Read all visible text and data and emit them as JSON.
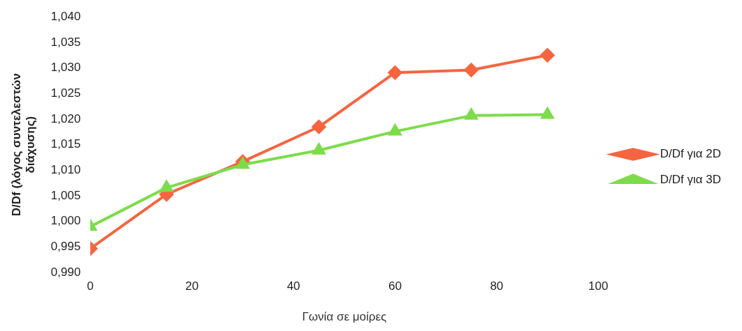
{
  "chart_data": {
    "type": "line",
    "xlabel": "Γωνία σε μοίρες",
    "ylabel": "D/Df (λόγος συντελεστών\nδιάχυσης)",
    "x": [
      0,
      15,
      30,
      45,
      60,
      75,
      90
    ],
    "series": [
      {
        "name": "D/Df για 2D",
        "color": "#f5653f",
        "marker": "diamond",
        "values": [
          0.9947,
          1.0053,
          1.0117,
          1.0185,
          1.0291,
          1.0296,
          1.0325
        ]
      },
      {
        "name": "D/Df για 3D",
        "color": "#7cdc4a",
        "marker": "triangle",
        "values": [
          0.999,
          1.0066,
          1.0111,
          1.0139,
          1.0176,
          1.0207,
          1.0209
        ]
      }
    ],
    "xlim": [
      0,
      100
    ],
    "xticks": [
      0,
      20,
      40,
      60,
      80,
      100
    ],
    "ylim": [
      0.99,
      1.04
    ],
    "yticks": [
      {
        "value": 0.99,
        "label": "0,990"
      },
      {
        "value": 0.995,
        "label": "0,995"
      },
      {
        "value": 1.0,
        "label": "1,000"
      },
      {
        "value": 1.005,
        "label": "1,005"
      },
      {
        "value": 1.01,
        "label": "1,010"
      },
      {
        "value": 1.015,
        "label": "1,015"
      },
      {
        "value": 1.02,
        "label": "1,020"
      },
      {
        "value": 1.025,
        "label": "1,025"
      },
      {
        "value": 1.03,
        "label": "1,030"
      },
      {
        "value": 1.035,
        "label": "1,035"
      },
      {
        "value": 1.04,
        "label": "1,040"
      }
    ],
    "grid": false,
    "legend": "right",
    "line_style": "solid"
  }
}
